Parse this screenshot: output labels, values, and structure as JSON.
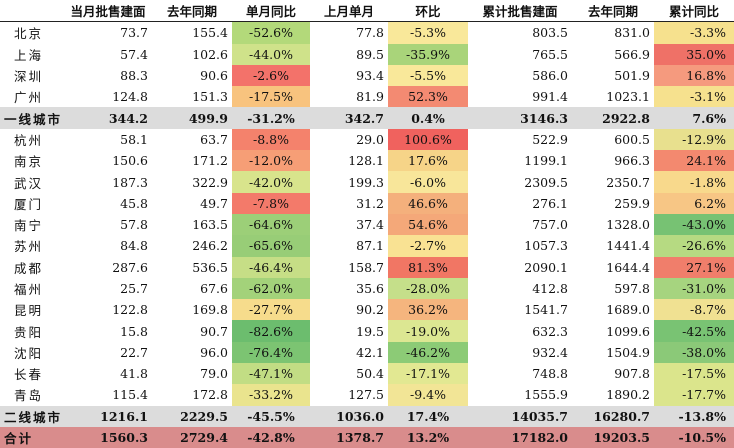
{
  "headers": [
    "",
    "当月批售建面",
    "去年同期",
    "单月同比",
    "上月单月",
    "环比",
    "累计批售建面",
    "去年同期",
    "累计同比"
  ],
  "rows": [
    {
      "type": "city",
      "cells": [
        "北京",
        "73.7",
        "155.4",
        "-52.6%",
        "77.8",
        "-5.3%",
        "803.5",
        "831.0",
        "-3.3%"
      ],
      "colors": [
        "#b3d97a",
        "#f9e89a",
        "#f6e18e"
      ]
    },
    {
      "type": "city",
      "cells": [
        "上海",
        "57.4",
        "102.6",
        "-44.0%",
        "89.5",
        "-35.9%",
        "765.5",
        "566.9",
        "35.0%"
      ],
      "colors": [
        "#cfe28a",
        "#a9d47a",
        "#ef7167"
      ]
    },
    {
      "type": "city",
      "cells": [
        "深圳",
        "88.3",
        "90.6",
        "-2.6%",
        "93.4",
        "-5.5%",
        "586.0",
        "501.9",
        "16.8%"
      ],
      "colors": [
        "#f3726a",
        "#f9e89a",
        "#f59a7e"
      ]
    },
    {
      "type": "city",
      "cells": [
        "广州",
        "124.8",
        "151.3",
        "-17.5%",
        "81.9",
        "52.3%",
        "991.4",
        "1023.1",
        "-3.1%"
      ],
      "colors": [
        "#f8c37e",
        "#f38a72",
        "#f6e18e"
      ]
    },
    {
      "type": "sub",
      "cells": [
        "一线城市",
        "344.2",
        "499.9",
        "-31.2%",
        "342.7",
        "0.4%",
        "3146.3",
        "2922.8",
        "7.6%"
      ]
    },
    {
      "type": "city",
      "cells": [
        "杭州",
        "58.1",
        "63.7",
        "-8.8%",
        "29.0",
        "100.6%",
        "522.9",
        "600.5",
        "-12.9%"
      ],
      "colors": [
        "#f4826c",
        "#f0625e",
        "#e8e08e"
      ]
    },
    {
      "type": "city",
      "cells": [
        "南京",
        "150.6",
        "171.2",
        "-12.0%",
        "128.1",
        "17.6%",
        "1199.1",
        "966.3",
        "24.1%"
      ],
      "colors": [
        "#f69e76",
        "#f6d488",
        "#f3896f"
      ]
    },
    {
      "type": "city",
      "cells": [
        "武汉",
        "187.3",
        "322.9",
        "-42.0%",
        "199.3",
        "-6.0%",
        "2309.5",
        "2350.7",
        "-1.8%"
      ],
      "colors": [
        "#d8e48c",
        "#f8e69a",
        "#f8d98c"
      ]
    },
    {
      "type": "city",
      "cells": [
        "厦门",
        "45.8",
        "49.7",
        "-7.8%",
        "31.2",
        "46.6%",
        "276.1",
        "259.9",
        "6.2%"
      ],
      "colors": [
        "#f37a6a",
        "#f4b07c",
        "#f7c685"
      ]
    },
    {
      "type": "city",
      "cells": [
        "南宁",
        "57.8",
        "163.5",
        "-64.6%",
        "37.4",
        "54.6%",
        "757.0",
        "1328.0",
        "-43.0%"
      ],
      "colors": [
        "#9ccf78",
        "#f4a879",
        "#77c273"
      ]
    },
    {
      "type": "city",
      "cells": [
        "苏州",
        "84.8",
        "246.2",
        "-65.6%",
        "87.1",
        "-2.7%",
        "1057.3",
        "1441.4",
        "-26.6%"
      ],
      "colors": [
        "#98cd77",
        "#f9e293",
        "#b6da82"
      ]
    },
    {
      "type": "city",
      "cells": [
        "成都",
        "287.6",
        "536.5",
        "-46.4%",
        "158.7",
        "81.3%",
        "2090.1",
        "1644.4",
        "27.1%"
      ],
      "colors": [
        "#c6de86",
        "#f17664",
        "#f07e6b"
      ]
    },
    {
      "type": "city",
      "cells": [
        "福州",
        "25.7",
        "67.6",
        "-62.0%",
        "35.6",
        "-28.0%",
        "412.8",
        "597.8",
        "-31.0%"
      ],
      "colors": [
        "#a3d27a",
        "#c5df8a",
        "#a6d47f"
      ]
    },
    {
      "type": "city",
      "cells": [
        "昆明",
        "122.8",
        "169.8",
        "-27.7%",
        "90.2",
        "36.2%",
        "1541.7",
        "1689.0",
        "-8.7%"
      ],
      "colors": [
        "#f6dc8c",
        "#f5b57e",
        "#f0e192"
      ]
    },
    {
      "type": "city",
      "cells": [
        "贵阳",
        "15.8",
        "90.7",
        "-82.6%",
        "19.5",
        "-19.0%",
        "632.3",
        "1099.6",
        "-42.5%"
      ],
      "colors": [
        "#6cbd6e",
        "#dce792",
        "#79c373"
      ]
    },
    {
      "type": "city",
      "cells": [
        "沈阳",
        "22.7",
        "96.0",
        "-76.4%",
        "42.1",
        "-46.2%",
        "932.4",
        "1504.9",
        "-38.0%"
      ],
      "colors": [
        "#7cc472",
        "#8ccb76",
        "#8bc978"
      ]
    },
    {
      "type": "city",
      "cells": [
        "长春",
        "41.8",
        "79.0",
        "-47.1%",
        "50.4",
        "-17.1%",
        "748.8",
        "907.8",
        "-17.5%"
      ],
      "colors": [
        "#c2dd84",
        "#e2e892",
        "#dbe58c"
      ]
    },
    {
      "type": "city",
      "cells": [
        "青岛",
        "115.4",
        "172.8",
        "-33.2%",
        "127.5",
        "-9.4%",
        "1555.9",
        "1890.2",
        "-17.7%"
      ],
      "colors": [
        "#eae48e",
        "#f2e596",
        "#dbe58c"
      ]
    },
    {
      "type": "sub",
      "cells": [
        "二线城市",
        "1216.1",
        "2229.5",
        "-45.5%",
        "1036.0",
        "17.4%",
        "14035.7",
        "16280.7",
        "-13.8%"
      ]
    },
    {
      "type": "total",
      "cells": [
        "合计",
        "1560.3",
        "2729.4",
        "-42.8%",
        "1378.7",
        "13.2%",
        "17182.0",
        "19203.5",
        "-10.5%"
      ]
    }
  ]
}
